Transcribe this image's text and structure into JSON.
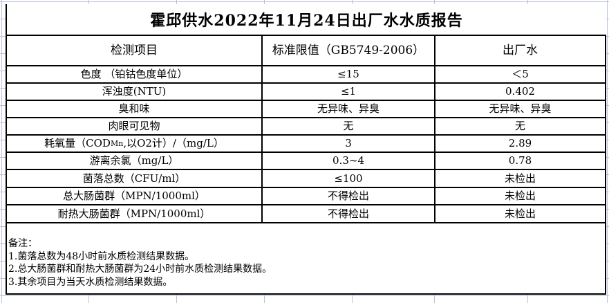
{
  "report": {
    "title": "霍邱供水2022年11月24日出厂水水质报告",
    "columns": [
      "检测项目",
      "标准限值（GB5749-2006）",
      "出厂水"
    ],
    "rows": [
      {
        "item": "色度 （铂钴色度单位）",
        "standard": "≤15",
        "result": "＜5"
      },
      {
        "item": "浑浊度(NTU)",
        "standard": "≤1",
        "result": "0.402"
      },
      {
        "item": "臭和味",
        "standard": "无异味、异臭",
        "result": "无异味、异臭"
      },
      {
        "item": "肉眼可见物",
        "standard": "无",
        "result": "无"
      },
      {
        "item_pre": "耗氧量（COD",
        "item_sub": "Mn",
        "item_post": ",以O2计）/（mg/L）",
        "standard": "3",
        "result": "2.89"
      },
      {
        "item": "游离余氯（mg/L）",
        "standard": "0.3~4",
        "result": "0.78"
      },
      {
        "item": "菌落总数（CFU/ml）",
        "standard": "≤100",
        "result": "未检出"
      },
      {
        "item": "总大肠菌群（MPN/1000ml）",
        "standard": "不得检出",
        "result": "未检出"
      },
      {
        "item": "耐热大肠菌群（MPN/1000ml）",
        "standard": "不得检出",
        "result": "未检出"
      }
    ],
    "notes": {
      "label": "备注：",
      "items": [
        "1.菌落总数为48小时前水质检测结果数据。",
        "2.总大肠菌群和耐热大肠菌群为24小时前水质检测结果数据。",
        "3.其余项目为当天水质检测结果数据。"
      ]
    }
  },
  "colors": {
    "border": "#000000",
    "gridline": "#b9c2d8",
    "background": "#ffffff",
    "text": "#000000"
  }
}
